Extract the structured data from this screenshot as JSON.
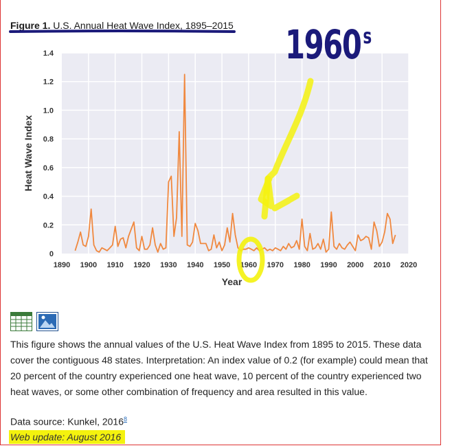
{
  "figure": {
    "number_label": "Figure 1.",
    "title": "U.S. Annual Heat Wave Index, 1895–2015",
    "description": "This figure shows the annual values of the U.S. Heat Wave Index from 1895 to 2015. These data cover the contiguous 48 states. Interpretation: An index value of 0.2 (for example) could mean that 20 percent of the country experienced one heat wave, 10 percent of the country experienced two heat waves, or some other combination of frequency and area resulted in this value.",
    "source_label": "Data source: Kunkel, 2016",
    "source_ref": "8",
    "update_label": "Web update: August 2016"
  },
  "annotation": {
    "text": "1960",
    "suffix": "s",
    "color": "#1b1a7a",
    "highlight_color": "#f4f20e"
  },
  "icons": [
    {
      "name": "table-icon",
      "label": ""
    },
    {
      "name": "image-icon",
      "label": ""
    }
  ],
  "chart_data": {
    "type": "line",
    "xlabel": "Year",
    "ylabel": "Heat Wave Index",
    "xlim": [
      1890,
      2020
    ],
    "ylim": [
      0,
      1.4
    ],
    "xticks": [
      1890,
      1900,
      1910,
      1920,
      1930,
      1940,
      1950,
      1960,
      1970,
      1980,
      1990,
      2000,
      2010,
      2020
    ],
    "yticks": [
      0,
      0.2,
      0.4,
      0.6,
      0.8,
      1.0,
      1.2,
      1.4
    ],
    "ytick_labels": [
      "0",
      "0.2",
      "0.4",
      "0.6",
      "0.8",
      "1.0",
      "1.2",
      "1.4"
    ],
    "grid": true,
    "line_color": "#f0883e",
    "series": [
      {
        "x": [
          1895,
          1896,
          1897,
          1898,
          1899,
          1900,
          1901,
          1902,
          1903,
          1904,
          1905,
          1906,
          1907,
          1908,
          1909,
          1910,
          1911,
          1912,
          1913,
          1914,
          1915,
          1916,
          1917,
          1918,
          1919,
          1920,
          1921,
          1922,
          1923,
          1924,
          1925,
          1926,
          1927,
          1928,
          1929,
          1930,
          1931,
          1932,
          1933,
          1934,
          1935,
          1936,
          1937,
          1938,
          1939,
          1940,
          1941,
          1942,
          1943,
          1944,
          1945,
          1946,
          1947,
          1948,
          1949,
          1950,
          1951,
          1952,
          1953,
          1954,
          1955,
          1956,
          1957,
          1958,
          1959,
          1960,
          1961,
          1962,
          1963,
          1964,
          1965,
          1966,
          1967,
          1968,
          1969,
          1970,
          1971,
          1972,
          1973,
          1974,
          1975,
          1976,
          1977,
          1978,
          1979,
          1980,
          1981,
          1982,
          1983,
          1984,
          1985,
          1986,
          1987,
          1988,
          1989,
          1990,
          1991,
          1992,
          1993,
          1994,
          1995,
          1996,
          1997,
          1998,
          1999,
          2000,
          2001,
          2002,
          2003,
          2004,
          2005,
          2006,
          2007,
          2008,
          2009,
          2010,
          2011,
          2012,
          2013,
          2014,
          2015
        ],
        "values": [
          0.02,
          0.08,
          0.15,
          0.06,
          0.05,
          0.12,
          0.31,
          0.06,
          0.02,
          0.01,
          0.04,
          0.03,
          0.02,
          0.04,
          0.06,
          0.19,
          0.05,
          0.1,
          0.11,
          0.04,
          0.12,
          0.17,
          0.22,
          0.04,
          0.02,
          0.12,
          0.03,
          0.03,
          0.06,
          0.18,
          0.06,
          0.01,
          0.07,
          0.03,
          0.04,
          0.5,
          0.54,
          0.12,
          0.25,
          0.85,
          0.12,
          1.25,
          0.06,
          0.05,
          0.08,
          0.21,
          0.16,
          0.07,
          0.07,
          0.07,
          0.02,
          0.03,
          0.13,
          0.04,
          0.08,
          0.02,
          0.06,
          0.18,
          0.08,
          0.28,
          0.13,
          0.04,
          0.02,
          0.03,
          0.03,
          0.04,
          0.03,
          0.02,
          0.04,
          0.02,
          0.03,
          0.04,
          0.02,
          0.03,
          0.02,
          0.04,
          0.03,
          0.02,
          0.05,
          0.03,
          0.07,
          0.04,
          0.05,
          0.09,
          0.03,
          0.24,
          0.05,
          0.02,
          0.14,
          0.03,
          0.04,
          0.07,
          0.03,
          0.1,
          0.01,
          0.03,
          0.29,
          0.05,
          0.03,
          0.07,
          0.04,
          0.03,
          0.06,
          0.08,
          0.05,
          0.02,
          0.13,
          0.09,
          0.1,
          0.12,
          0.11,
          0.03,
          0.22,
          0.16,
          0.05,
          0.08,
          0.15,
          0.28,
          0.24,
          0.07,
          0.13
        ]
      }
    ]
  }
}
